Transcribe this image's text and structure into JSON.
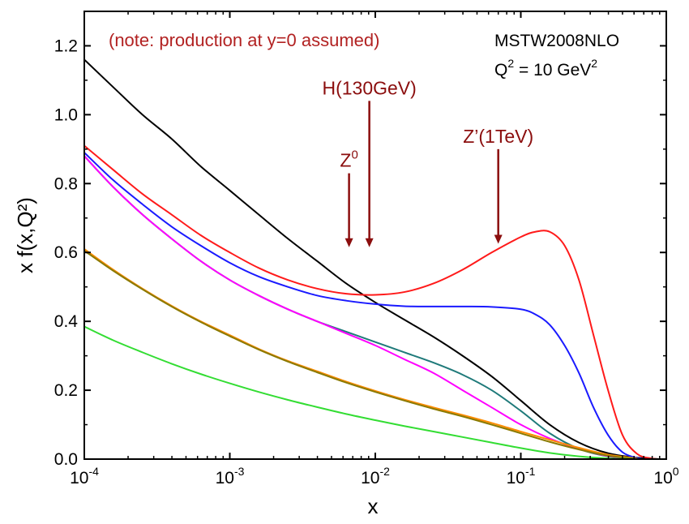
{
  "chart_data": {
    "type": "line",
    "xscale": "log",
    "xlim": [
      0.0001,
      1
    ],
    "ylim": [
      0.0,
      1.3
    ],
    "xlabel": "x",
    "ylabel": "x f(x,Q²)",
    "x_ticks": [
      {
        "value": 0.0001,
        "base": "10",
        "exp": "-4"
      },
      {
        "value": 0.001,
        "base": "10",
        "exp": "-3"
      },
      {
        "value": 0.01,
        "base": "10",
        "exp": "-2"
      },
      {
        "value": 0.1,
        "base": "10",
        "exp": "-1"
      },
      {
        "value": 1,
        "base": "10",
        "exp": "0"
      }
    ],
    "y_ticks": [
      {
        "value": 0.0,
        "label": "0.0"
      },
      {
        "value": 0.2,
        "label": "0.2"
      },
      {
        "value": 0.4,
        "label": "0.4"
      },
      {
        "value": 0.6,
        "label": "0.6"
      },
      {
        "value": 0.8,
        "label": "0.8"
      },
      {
        "value": 1.0,
        "label": "1.0"
      },
      {
        "value": 1.2,
        "label": "1.2"
      }
    ],
    "annotations": {
      "note": "(note: production at y=0 assumed)",
      "model": "MSTW2008NLO",
      "scale_main": "Q",
      "scale_sup": "2",
      "scale_rest": " = 10 GeV",
      "scale_unit_sup": "2"
    },
    "arrows": [
      {
        "x": 0.0066,
        "label_main": "Z",
        "label_sup": "0",
        "y_top": 0.83,
        "y_bottom": 0.62
      },
      {
        "x": 0.0091,
        "label_main": "H(130GeV)",
        "label_sup": "",
        "y_top": 1.04,
        "y_bottom": 0.62
      },
      {
        "x": 0.07,
        "label_main": "Z’(1TeV)",
        "label_sup": "",
        "y_top": 0.9,
        "y_bottom": 0.63
      }
    ],
    "series": [
      {
        "color": "#000000",
        "x": [
          0.0001,
          0.000158,
          0.000251,
          0.000398,
          0.000631,
          0.001,
          0.00158,
          0.00251,
          0.00398,
          0.00631,
          0.01,
          0.0158,
          0.0251,
          0.0398,
          0.0631,
          0.1,
          0.158,
          0.251,
          0.398,
          0.631,
          0.9
        ],
        "y": [
          1.16,
          1.08,
          1.0,
          0.93,
          0.85,
          0.78,
          0.71,
          0.64,
          0.575,
          0.51,
          0.455,
          0.405,
          0.355,
          0.3,
          0.24,
          0.17,
          0.1,
          0.048,
          0.017,
          0.004,
          0.0
        ]
      },
      {
        "color": "#ff1a1a",
        "x": [
          0.0001,
          0.000158,
          0.000251,
          0.000398,
          0.000631,
          0.001,
          0.00158,
          0.00251,
          0.00398,
          0.00631,
          0.01,
          0.0158,
          0.0251,
          0.0398,
          0.0631,
          0.1,
          0.126,
          0.158,
          0.2,
          0.251,
          0.316,
          0.398,
          0.5,
          0.631,
          0.79,
          0.9
        ],
        "y": [
          0.91,
          0.84,
          0.77,
          0.71,
          0.65,
          0.6,
          0.555,
          0.52,
          0.495,
          0.48,
          0.477,
          0.485,
          0.51,
          0.55,
          0.6,
          0.645,
          0.66,
          0.66,
          0.62,
          0.52,
          0.36,
          0.2,
          0.07,
          0.015,
          0.002,
          0.0
        ]
      },
      {
        "color": "#1a1aff",
        "x": [
          0.0001,
          0.000158,
          0.000251,
          0.000398,
          0.000631,
          0.001,
          0.00158,
          0.00251,
          0.00398,
          0.00631,
          0.01,
          0.0158,
          0.0251,
          0.0398,
          0.0631,
          0.1,
          0.126,
          0.158,
          0.2,
          0.251,
          0.316,
          0.398,
          0.5,
          0.631,
          0.72
        ],
        "y": [
          0.89,
          0.81,
          0.74,
          0.675,
          0.62,
          0.57,
          0.53,
          0.5,
          0.475,
          0.46,
          0.45,
          0.444,
          0.443,
          0.443,
          0.442,
          0.435,
          0.42,
          0.39,
          0.33,
          0.25,
          0.15,
          0.07,
          0.02,
          0.003,
          0.0
        ]
      },
      {
        "color": "#1f7a7a",
        "x": [
          0.0001,
          0.000158,
          0.000251,
          0.000398,
          0.000631,
          0.001,
          0.00158,
          0.00251,
          0.00398,
          0.00631,
          0.01,
          0.0158,
          0.0251,
          0.0398,
          0.0631,
          0.1,
          0.158,
          0.251,
          0.398,
          0.631
        ],
        "y": [
          0.88,
          0.79,
          0.71,
          0.64,
          0.575,
          0.52,
          0.475,
          0.435,
          0.4,
          0.37,
          0.34,
          0.31,
          0.28,
          0.245,
          0.2,
          0.14,
          0.075,
          0.03,
          0.008,
          0.001
        ]
      },
      {
        "color": "#ff00ff",
        "x": [
          0.0001,
          0.000158,
          0.000251,
          0.000398,
          0.000631,
          0.001,
          0.00158,
          0.00251,
          0.00398,
          0.00631,
          0.01,
          0.0158,
          0.0251,
          0.0398,
          0.0631,
          0.1,
          0.158,
          0.251,
          0.398,
          0.631
        ],
        "y": [
          0.88,
          0.79,
          0.71,
          0.64,
          0.575,
          0.52,
          0.475,
          0.435,
          0.4,
          0.365,
          0.33,
          0.29,
          0.25,
          0.2,
          0.15,
          0.1,
          0.06,
          0.03,
          0.009,
          0.001
        ]
      },
      {
        "color": "#ff8c00",
        "x": [
          0.0001,
          0.000158,
          0.000251,
          0.000398,
          0.000631,
          0.001,
          0.00158,
          0.00251,
          0.00398,
          0.00631,
          0.01,
          0.0158,
          0.0251,
          0.0398,
          0.0631,
          0.1,
          0.158,
          0.251,
          0.398,
          0.631
        ],
        "y": [
          0.61,
          0.55,
          0.495,
          0.445,
          0.4,
          0.36,
          0.32,
          0.285,
          0.255,
          0.225,
          0.198,
          0.173,
          0.15,
          0.128,
          0.105,
          0.08,
          0.056,
          0.033,
          0.013,
          0.002
        ]
      },
      {
        "color": "#8a7a00",
        "x": [
          0.0001,
          0.000158,
          0.000251,
          0.000398,
          0.000631,
          0.001,
          0.00158,
          0.00251,
          0.00398,
          0.00631,
          0.01,
          0.0158,
          0.0251,
          0.0398,
          0.0631,
          0.1,
          0.158,
          0.251,
          0.398,
          0.631
        ],
        "y": [
          0.605,
          0.547,
          0.493,
          0.443,
          0.398,
          0.357,
          0.318,
          0.283,
          0.252,
          0.222,
          0.195,
          0.17,
          0.146,
          0.124,
          0.1,
          0.075,
          0.05,
          0.028,
          0.01,
          0.001
        ]
      },
      {
        "color": "#33dd33",
        "x": [
          0.0001,
          0.000158,
          0.000251,
          0.000398,
          0.000631,
          0.001,
          0.00158,
          0.00251,
          0.00398,
          0.00631,
          0.01,
          0.0158,
          0.0251,
          0.0398,
          0.0631,
          0.1,
          0.158,
          0.251,
          0.398,
          0.631
        ],
        "y": [
          0.385,
          0.345,
          0.31,
          0.277,
          0.247,
          0.22,
          0.195,
          0.172,
          0.151,
          0.131,
          0.113,
          0.096,
          0.08,
          0.064,
          0.048,
          0.032,
          0.018,
          0.008,
          0.002,
          0.0
        ]
      }
    ]
  }
}
